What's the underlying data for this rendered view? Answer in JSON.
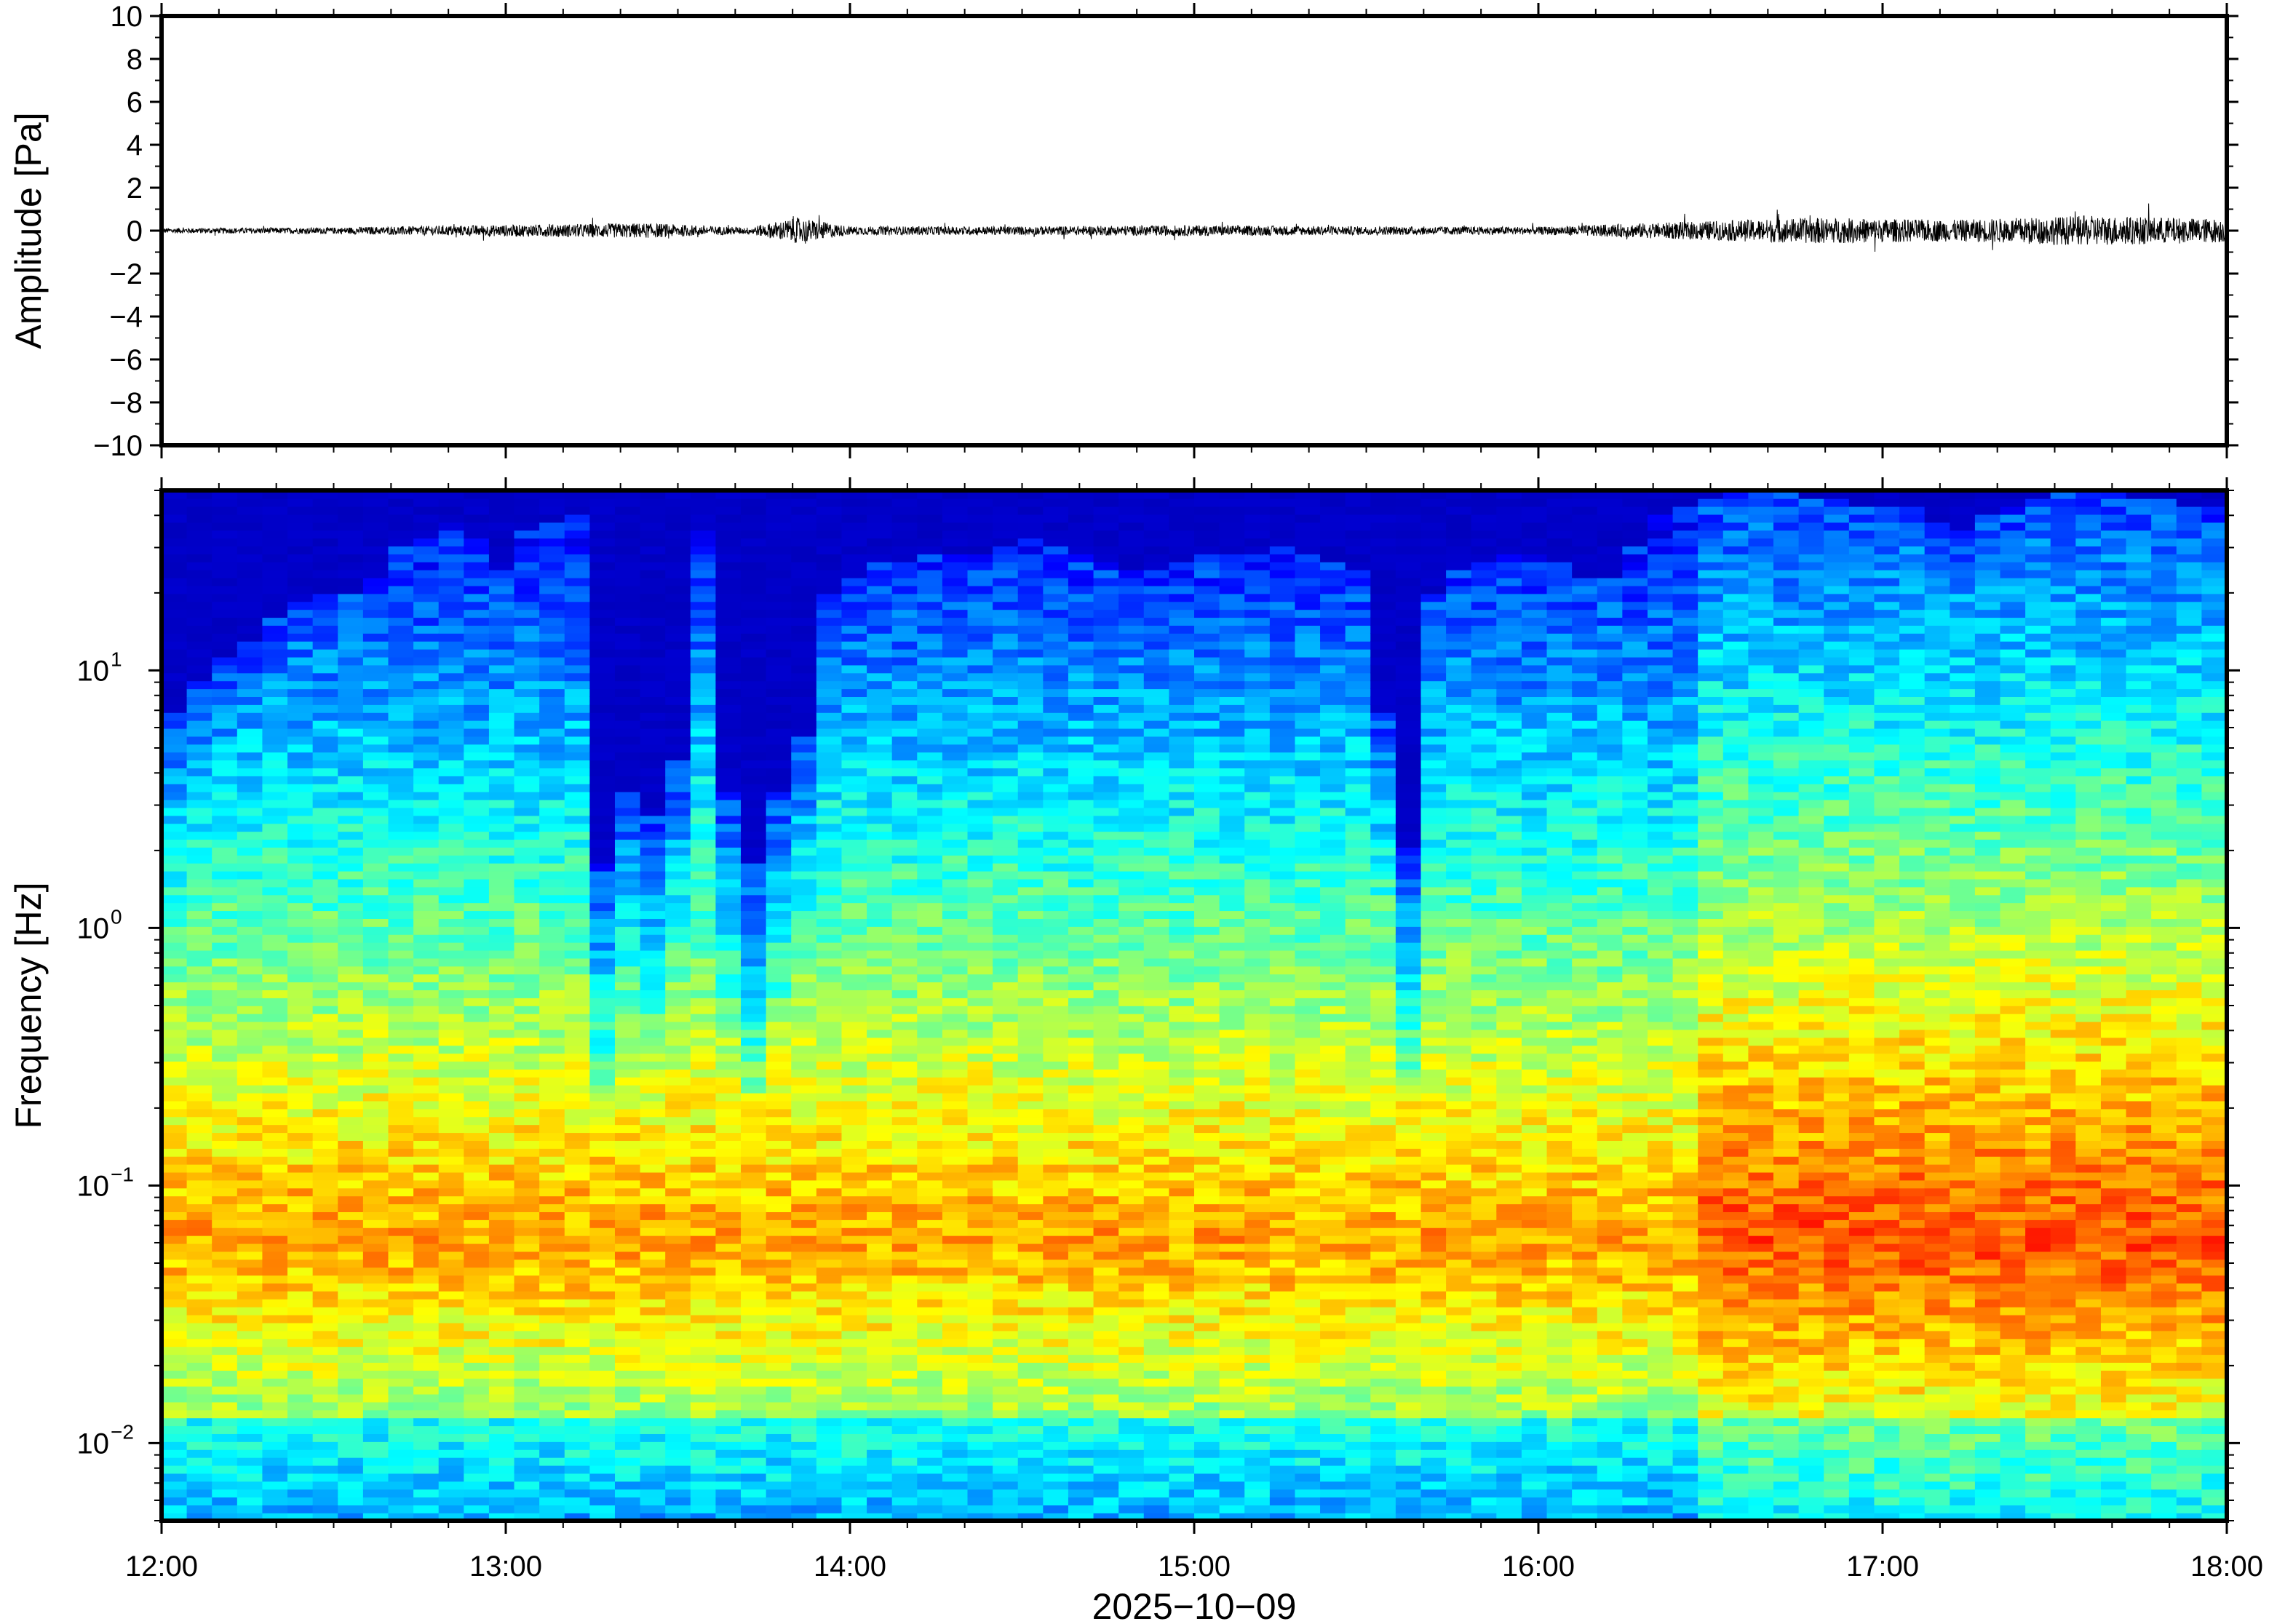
{
  "chart_data": [
    {
      "type": "line",
      "panel": "waveform",
      "ylabel": "Amplitude [Pa]",
      "ylim": [
        -10,
        10
      ],
      "yticks": [
        10,
        8,
        6,
        4,
        2,
        0,
        -2,
        -4,
        -6,
        -8,
        -10
      ],
      "ytick_labels": [
        "10",
        "8",
        "6",
        "4",
        "2",
        "0",
        "−2",
        "−4",
        "−6",
        "−8",
        "−10"
      ],
      "xlim": [
        "12:00",
        "18:00"
      ],
      "envelope": {
        "description_hours": [
          12.0,
          12.5,
          12.9,
          13.4,
          13.7,
          13.85,
          14.0,
          14.5,
          15.0,
          15.5,
          16.0,
          16.5,
          16.8,
          17.2,
          17.6,
          18.0
        ],
        "amplitude_pa": [
          0.12,
          0.15,
          0.25,
          0.35,
          0.15,
          0.6,
          0.2,
          0.2,
          0.25,
          0.2,
          0.18,
          0.45,
          0.6,
          0.5,
          0.7,
          0.55
        ]
      }
    },
    {
      "type": "heatmap",
      "panel": "spectrogram",
      "ylabel": "Frequency [Hz]",
      "yscale": "log",
      "ylim_hz": [
        0.005,
        50
      ],
      "yticks_hz": [
        0.01,
        0.1,
        1,
        10
      ],
      "ytick_labels": [
        {
          "base": "10",
          "exp": "−2"
        },
        {
          "base": "10",
          "exp": "−1"
        },
        {
          "base": "10",
          "exp": "0"
        },
        {
          "base": "10",
          "exp": "1"
        }
      ],
      "colormap": "jet",
      "time_columns_minutes": 10,
      "noise_cutoff_hz_by_column": [
        3,
        4,
        5,
        6,
        7,
        8,
        9,
        9,
        10,
        14,
        15,
        17,
        15,
        11,
        16,
        17,
        18,
        0.8,
        1.5,
        1.2,
        2,
        16,
        1.5,
        0.8,
        1.5,
        2.5,
        9,
        10,
        12,
        12,
        13,
        13,
        13,
        14,
        15,
        14,
        13,
        12,
        11,
        11,
        12,
        13,
        13,
        13,
        14,
        13,
        12,
        11,
        3,
        0.9,
        9,
        11,
        12,
        13,
        13,
        12,
        10,
        10,
        14,
        18,
        20,
        21,
        22,
        22,
        22,
        21,
        21,
        20,
        20,
        19,
        17,
        16,
        18,
        19,
        21,
        22,
        22,
        22,
        21,
        21,
        20,
        19
      ]
    }
  ],
  "x_axis": {
    "tick_labels": [
      "12:00",
      "13:00",
      "14:00",
      "15:00",
      "16:00",
      "17:00",
      "18:00"
    ],
    "xlabel": "2025−10−09"
  }
}
